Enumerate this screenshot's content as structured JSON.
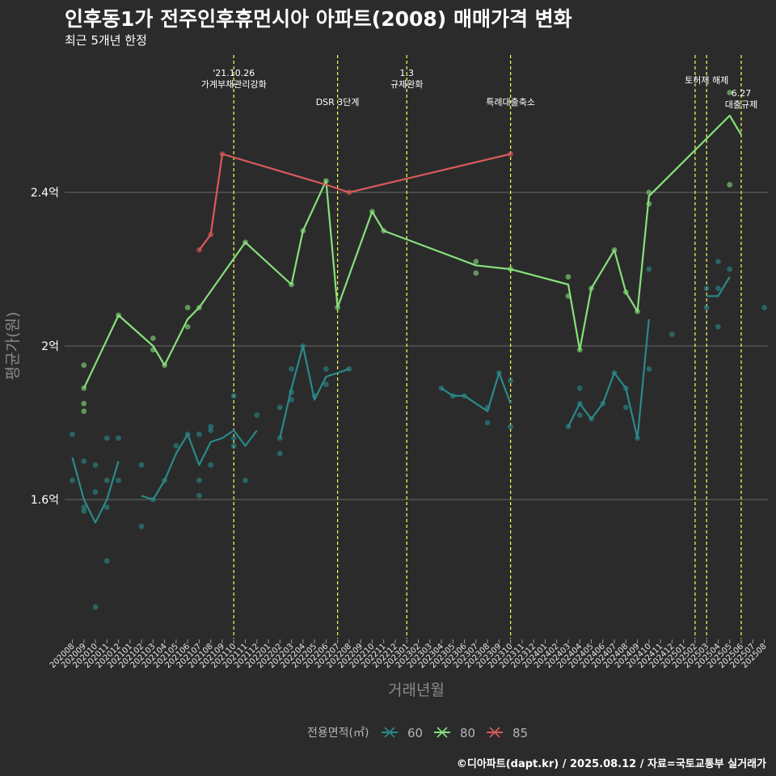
{
  "title": "인후동1가 전주인후휴먼시아 아파트(2008) 매매가격 변화",
  "subtitle": "최근 5개년 한정",
  "caption": "©디아파트(dapt.kr) / 2025.08.12 / 자료=국토교통부 실거래가",
  "chart_data": {
    "type": "line",
    "xlabel": "거래년월",
    "ylabel": "평균가(원)",
    "x_ticks": [
      "202008",
      "202009",
      "202010",
      "202011",
      "202012",
      "202101",
      "202102",
      "202103",
      "202104",
      "202105",
      "202106",
      "202107",
      "202108",
      "202109",
      "202110",
      "202111",
      "202112",
      "202201",
      "202202",
      "202203",
      "202204",
      "202205",
      "202206",
      "202207",
      "202208",
      "202209",
      "202210",
      "202211",
      "202212",
      "202301",
      "202302",
      "202303",
      "202304",
      "202305",
      "202306",
      "202307",
      "202308",
      "202309",
      "202310",
      "202311",
      "202312",
      "202401",
      "202402",
      "202403",
      "202404",
      "202405",
      "202406",
      "202407",
      "202408",
      "202409",
      "202410",
      "202411",
      "202412",
      "202501",
      "202502",
      "202503",
      "202504",
      "202505",
      "202506",
      "202507",
      "202508"
    ],
    "y_ticks": [
      {
        "value": 1.6,
        "label": "1.6억"
      },
      {
        "value": 2.0,
        "label": "2억"
      },
      {
        "value": 2.4,
        "label": "2.4억"
      }
    ],
    "ylim": [
      1.25,
      2.78
    ],
    "grid": true,
    "legend": {
      "title": "전용면적(㎡)",
      "position": "bottom",
      "entries": [
        {
          "label": "60",
          "color": "#2a8a8a"
        },
        {
          "label": "80",
          "color": "#86e07a"
        },
        {
          "label": "85",
          "color": "#d95a5a"
        }
      ]
    },
    "annotations": [
      {
        "x": "202110",
        "label": "'21.10.26\n가계부채관리강화",
        "color": "#ffff55"
      },
      {
        "x": "202207",
        "label": "DSR 3단계",
        "color": "#ffff55"
      },
      {
        "x": "202301",
        "label": "1.3\n규제완화",
        "color": "#ffff55"
      },
      {
        "x": "202310",
        "label": "특례대출축소",
        "color": "#ffff55"
      },
      {
        "x": "202502",
        "label": "",
        "color": "#ffff55"
      },
      {
        "x": "202503",
        "label": "토허제 해제",
        "color": "#ffff55"
      },
      {
        "x": "202506",
        "label": "6.27\n대출규제",
        "color": "#ffff55"
      }
    ],
    "series": [
      {
        "name": "60",
        "color": "#2a8a8a",
        "lines": [
          {
            "x": [
              "202008",
              "202009",
              "202010",
              "202011",
              "202012"
            ],
            "y": [
              1.71,
              1.6,
              1.54,
              1.6,
              1.7
            ]
          },
          {
            "x": [
              "202102",
              "202103",
              "202104",
              "202105",
              "202106",
              "202107",
              "202108",
              "202109",
              "202110",
              "202111",
              "202112"
            ],
            "y": [
              1.61,
              1.6,
              1.65,
              1.72,
              1.77,
              1.69,
              1.75,
              1.76,
              1.78,
              1.74,
              1.78
            ]
          },
          {
            "x": [
              "202202",
              "202203",
              "202204",
              "202205",
              "202206",
              "202207",
              "202208"
            ],
            "y": [
              1.76,
              1.89,
              2.0,
              1.86,
              1.92,
              1.93,
              1.94
            ]
          },
          {
            "x": [
              "202304",
              "202305",
              "202306",
              "202307",
              "202308",
              "202309",
              "202310"
            ],
            "y": [
              1.89,
              1.87,
              1.87,
              1.85,
              1.83,
              1.93,
              1.85
            ]
          },
          {
            "x": [
              "202403",
              "202404",
              "202405",
              "202406",
              "202407",
              "202408",
              "202409",
              "202410"
            ],
            "y": [
              1.79,
              1.85,
              1.81,
              1.85,
              1.93,
              1.89,
              1.76,
              2.07
            ]
          },
          {
            "x": [
              "202503",
              "202504",
              "202505"
            ],
            "y": [
              2.13,
              2.13,
              2.18
            ]
          }
        ],
        "points": [
          [
            "202008",
            1.77
          ],
          [
            "202008",
            1.65
          ],
          [
            "202009",
            1.7
          ],
          [
            "202009",
            1.58
          ],
          [
            "202009",
            1.57
          ],
          [
            "202010",
            1.69
          ],
          [
            "202010",
            1.62
          ],
          [
            "202010",
            1.32
          ],
          [
            "202011",
            1.76
          ],
          [
            "202011",
            1.65
          ],
          [
            "202011",
            1.58
          ],
          [
            "202011",
            1.44
          ],
          [
            "202012",
            1.76
          ],
          [
            "202012",
            1.65
          ],
          [
            "202102",
            1.69
          ],
          [
            "202102",
            1.53
          ],
          [
            "202103",
            1.6
          ],
          [
            "202104",
            1.65
          ],
          [
            "202105",
            1.74
          ],
          [
            "202106",
            1.77
          ],
          [
            "202107",
            1.77
          ],
          [
            "202107",
            1.65
          ],
          [
            "202107",
            1.61
          ],
          [
            "202108",
            1.69
          ],
          [
            "202108",
            1.78
          ],
          [
            "202108",
            1.79
          ],
          [
            "202110",
            1.87
          ],
          [
            "202110",
            1.76
          ],
          [
            "202110",
            1.74
          ],
          [
            "202111",
            1.65
          ],
          [
            "202112",
            1.82
          ],
          [
            "202202",
            1.84
          ],
          [
            "202202",
            1.76
          ],
          [
            "202202",
            1.72
          ],
          [
            "202203",
            1.94
          ],
          [
            "202203",
            1.86
          ],
          [
            "202203",
            1.88
          ],
          [
            "202204",
            2.0
          ],
          [
            "202205",
            1.87
          ],
          [
            "202206",
            1.94
          ],
          [
            "202206",
            1.9
          ],
          [
            "202208",
            1.94
          ],
          [
            "202304",
            1.89
          ],
          [
            "202305",
            1.87
          ],
          [
            "202306",
            1.87
          ],
          [
            "202308",
            1.84
          ],
          [
            "202308",
            1.8
          ],
          [
            "202309",
            1.93
          ],
          [
            "202310",
            1.91
          ],
          [
            "202310",
            1.79
          ],
          [
            "202403",
            1.79
          ],
          [
            "202404",
            1.85
          ],
          [
            "202404",
            1.82
          ],
          [
            "202404",
            1.89
          ],
          [
            "202405",
            1.81
          ],
          [
            "202406",
            1.85
          ],
          [
            "202407",
            1.93
          ],
          [
            "202408",
            1.89
          ],
          [
            "202408",
            1.84
          ],
          [
            "202409",
            1.76
          ],
          [
            "202410",
            1.94
          ],
          [
            "202410",
            2.2
          ],
          [
            "202412",
            2.03
          ],
          [
            "202503",
            2.15
          ],
          [
            "202503",
            2.1
          ],
          [
            "202504",
            2.22
          ],
          [
            "202504",
            2.15
          ],
          [
            "202504",
            2.05
          ],
          [
            "202505",
            2.2
          ],
          [
            "202508",
            2.1
          ]
        ]
      },
      {
        "name": "80",
        "color": "#86e07a",
        "lines": [
          {
            "x": [
              "202009",
              "202012",
              "202103",
              "202104",
              "202106",
              "202107",
              "202111",
              "202203",
              "202204",
              "202206",
              "202207",
              "202210",
              "202211",
              "202307",
              "202310",
              "202403",
              "202404",
              "202405",
              "202407",
              "202408",
              "202409",
              "202410",
              "202505",
              "202506"
            ],
            "y": [
              1.89,
              2.08,
              2.0,
              1.95,
              2.07,
              2.1,
              2.27,
              2.16,
              2.3,
              2.43,
              2.1,
              2.35,
              2.3,
              2.21,
              2.2,
              2.16,
              1.99,
              2.15,
              2.25,
              2.14,
              2.09,
              2.39,
              2.6,
              2.55
            ]
          }
        ],
        "points": [
          [
            "202009",
            1.95
          ],
          [
            "202009",
            1.89
          ],
          [
            "202009",
            1.85
          ],
          [
            "202009",
            1.83
          ],
          [
            "202012",
            2.08
          ],
          [
            "202103",
            2.02
          ],
          [
            "202103",
            1.99
          ],
          [
            "202104",
            1.95
          ],
          [
            "202106",
            2.1
          ],
          [
            "202106",
            2.05
          ],
          [
            "202107",
            2.1
          ],
          [
            "202111",
            2.27
          ],
          [
            "202203",
            2.16
          ],
          [
            "202204",
            2.3
          ],
          [
            "202206",
            2.43
          ],
          [
            "202207",
            2.1
          ],
          [
            "202210",
            2.35
          ],
          [
            "202211",
            2.3
          ],
          [
            "202307",
            2.22
          ],
          [
            "202307",
            2.19
          ],
          [
            "202310",
            2.2
          ],
          [
            "202403",
            2.18
          ],
          [
            "202403",
            2.13
          ],
          [
            "202404",
            1.99
          ],
          [
            "202405",
            2.15
          ],
          [
            "202407",
            2.25
          ],
          [
            "202408",
            2.14
          ],
          [
            "202409",
            2.09
          ],
          [
            "202410",
            2.4
          ],
          [
            "202410",
            2.37
          ],
          [
            "202505",
            2.66
          ],
          [
            "202505",
            2.42
          ]
        ]
      },
      {
        "name": "85",
        "color": "#d95a5a",
        "lines": [
          {
            "x": [
              "202107",
              "202108",
              "202109",
              "202206",
              "202208",
              "202310"
            ],
            "y": [
              2.25,
              2.29,
              2.5,
              2.42,
              2.4,
              2.5
            ]
          }
        ],
        "points": [
          [
            "202107",
            2.25
          ],
          [
            "202108",
            2.29
          ],
          [
            "202109",
            2.5
          ],
          [
            "202208",
            2.4
          ],
          [
            "202310",
            2.5
          ]
        ]
      }
    ]
  }
}
